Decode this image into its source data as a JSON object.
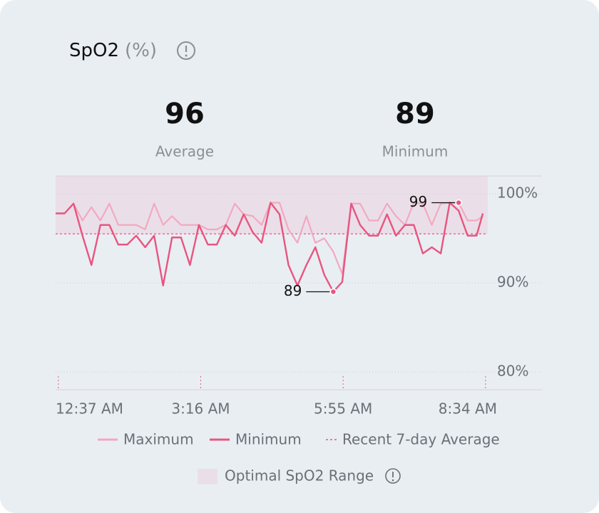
{
  "chart_data": {
    "type": "line",
    "title": "SpO2",
    "unit": "(%)",
    "stats": [
      {
        "value": 96,
        "label": "Average"
      },
      {
        "value": 89,
        "label": "Minimum"
      }
    ],
    "x": [
      34,
      44,
      54,
      64,
      74,
      84,
      94,
      104,
      114,
      124,
      134,
      144,
      154,
      164,
      174,
      184,
      194,
      204,
      214,
      224,
      234,
      244,
      254,
      264,
      274,
      284,
      294,
      304,
      314,
      324,
      334,
      344,
      354,
      364,
      374,
      384,
      394,
      404,
      414,
      424,
      434,
      444,
      454,
      464,
      474,
      484,
      494,
      504,
      511
    ],
    "series": [
      {
        "name": "Maximum",
        "color": "#f2a9c0",
        "values": [
          97.8,
          97.8,
          98.9,
          97,
          98.5,
          97,
          98.9,
          96.5,
          96.5,
          96.5,
          96,
          98.9,
          96.5,
          97.5,
          96.5,
          96.5,
          96.5,
          96,
          96,
          96.5,
          98.9,
          97.7,
          97.5,
          96.5,
          99,
          99,
          96,
          94.5,
          97.5,
          94.5,
          95,
          93.5,
          91,
          98.9,
          98.9,
          97,
          97,
          98.9,
          97.5,
          96.5,
          99,
          98.9,
          96.5,
          98.9,
          99,
          99,
          97,
          97,
          97.5
        ]
      },
      {
        "name": "Minimum",
        "color": "#e8557f",
        "values": [
          97.8,
          97.8,
          98.9,
          95.3,
          92,
          96.5,
          96.5,
          94.3,
          94.3,
          95.3,
          94,
          95.3,
          89.7,
          95.1,
          95.1,
          92,
          96.5,
          94.3,
          94.3,
          96.5,
          95.3,
          97.7,
          95.7,
          94.5,
          99,
          97.7,
          92,
          89.7,
          92,
          94,
          90.9,
          89,
          90.1,
          98.9,
          96.5,
          95.3,
          95.3,
          97.7,
          95.3,
          96.5,
          96.5,
          93.3,
          94,
          93.3,
          99,
          98.1,
          95.3,
          95.3,
          97.8
        ]
      }
    ],
    "average": {
      "label": "Recent 7-day Average",
      "value": 95.5,
      "color": "#e8557f"
    },
    "optimal_range": {
      "label": "Optimal SpO2 Range",
      "values": [
        95.5,
        102
      ],
      "color": "#eadfe8"
    },
    "annotations": [
      {
        "label": "99",
        "x": 484,
        "value": 99
      },
      {
        "label": "89",
        "x": 344,
        "value": 89
      }
    ],
    "xlim": [
      34,
      577
    ],
    "xticks": [
      {
        "value": 37,
        "label": "12:37 AM"
      },
      {
        "value": 196,
        "label": "3:16 AM"
      },
      {
        "value": 355,
        "label": "5:55 AM"
      },
      {
        "value": 514,
        "label": "8:34 AM"
      }
    ],
    "ylim": [
      78,
      102
    ],
    "yticks": [
      {
        "value": 80,
        "label": "80%"
      },
      {
        "value": 90,
        "label": "90%"
      },
      {
        "value": 100,
        "label": "100%"
      }
    ],
    "grid": true
  }
}
